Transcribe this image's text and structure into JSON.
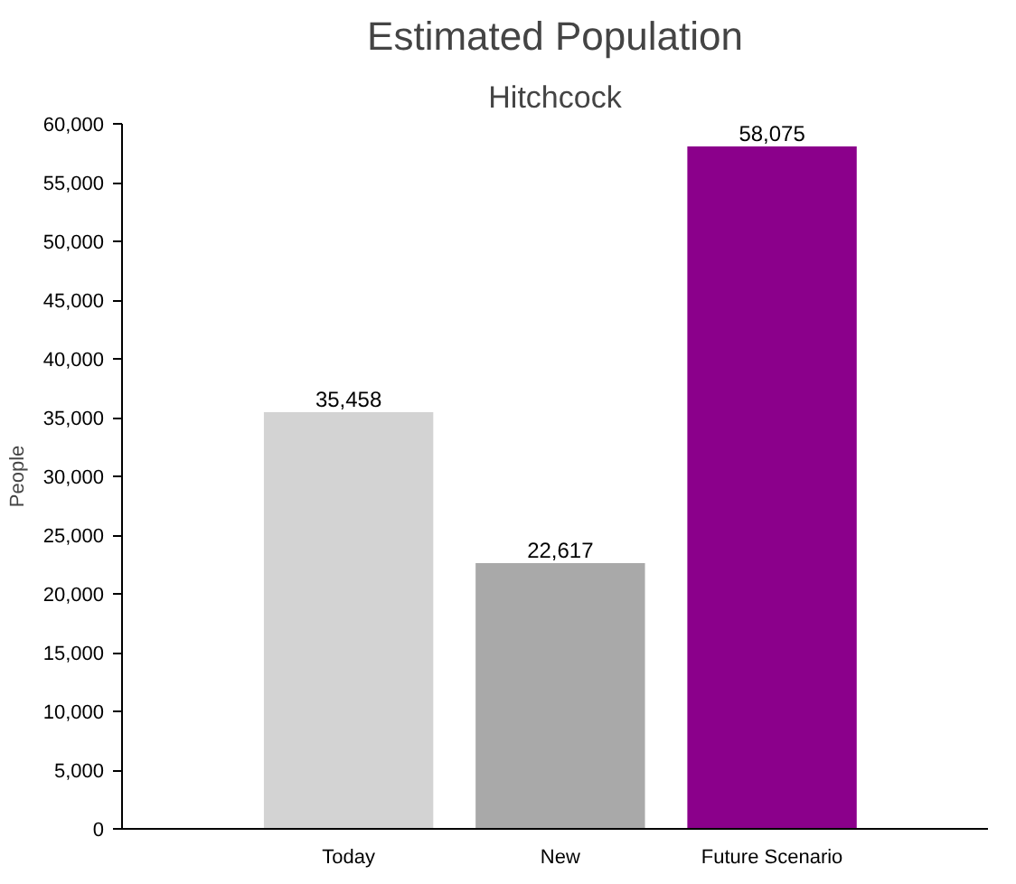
{
  "chart_data": {
    "type": "bar",
    "title": "Estimated Population",
    "subtitle": "Hitchcock",
    "ylabel": "People",
    "categories": [
      "Today",
      "New",
      "Future Scenario"
    ],
    "values": [
      35458,
      22617,
      58075
    ],
    "colors": [
      "#d3d3d3",
      "#a9a9a9",
      "#8b008b"
    ],
    "ylim": [
      0,
      60000
    ],
    "yticks": [
      {
        "value": 0,
        "label": "0"
      },
      {
        "value": 5000,
        "label": "5,000"
      },
      {
        "value": 10000,
        "label": "10,000"
      },
      {
        "value": 15000,
        "label": "15,000"
      },
      {
        "value": 20000,
        "label": "20,000"
      },
      {
        "value": 25000,
        "label": "25,000"
      },
      {
        "value": 30000,
        "label": "30,000"
      },
      {
        "value": 35000,
        "label": "35,000"
      },
      {
        "value": 40000,
        "label": "40,000"
      },
      {
        "value": 45000,
        "label": "45,000"
      },
      {
        "value": 50000,
        "label": "50,000"
      },
      {
        "value": 55000,
        "label": "55,000"
      },
      {
        "value": 60000,
        "label": "60,000"
      }
    ],
    "grid": false,
    "value_labels": [
      "35,458",
      "22,617",
      "58,075"
    ]
  }
}
